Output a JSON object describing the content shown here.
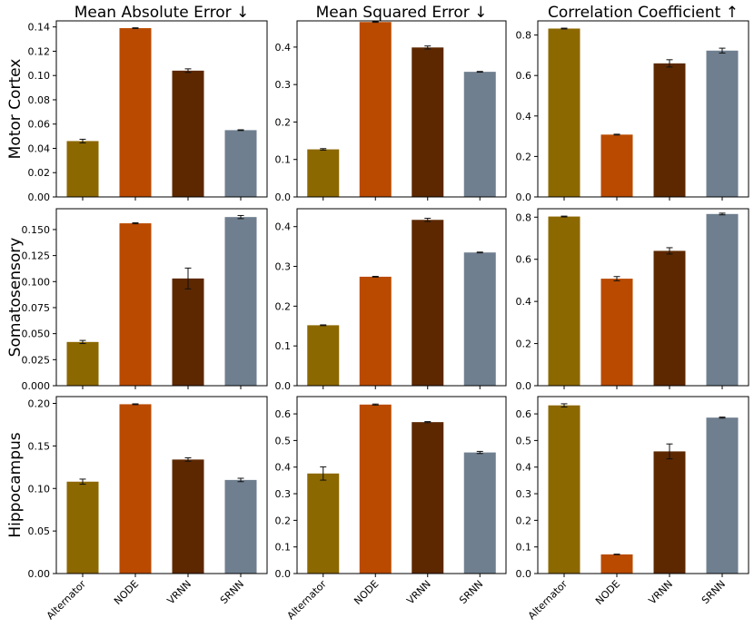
{
  "chart_data": {
    "type": "bar",
    "categories": [
      "Alternator",
      "NODE",
      "VRNN",
      "SRNN"
    ],
    "colors": [
      "#8c6800",
      "#ba4a00",
      "#5d2800",
      "#6f7f8f"
    ],
    "columns": [
      "Mean Absolute Error ↓",
      "Mean Squared Error ↓",
      "Correlation Coefficient ↑"
    ],
    "rows": [
      "Motor Cortex",
      "Somatosensory",
      "Hippocampus"
    ],
    "panels": [
      {
        "row": 0,
        "col": 0,
        "ylim": [
          0,
          0.145
        ],
        "yticks": [
          0.0,
          0.02,
          0.04,
          0.06,
          0.08,
          0.1,
          0.12,
          0.14
        ],
        "yticklabels": [
          "0.00",
          "0.02",
          "0.04",
          "0.06",
          "0.08",
          "0.10",
          "0.12",
          "0.14"
        ],
        "values": [
          0.046,
          0.139,
          0.104,
          0.055
        ],
        "errors": [
          0.0015,
          0.0003,
          0.0015,
          0.0003
        ]
      },
      {
        "row": 0,
        "col": 1,
        "ylim": [
          0,
          0.47
        ],
        "yticks": [
          0.0,
          0.1,
          0.2,
          0.3,
          0.4
        ],
        "yticklabels": [
          "0.0",
          "0.1",
          "0.2",
          "0.3",
          "0.4"
        ],
        "values": [
          0.127,
          0.467,
          0.399,
          0.334
        ],
        "errors": [
          0.002,
          0.001,
          0.004,
          0.001
        ]
      },
      {
        "row": 0,
        "col": 2,
        "ylim": [
          0,
          0.87
        ],
        "yticks": [
          0.0,
          0.2,
          0.4,
          0.6,
          0.8
        ],
        "yticklabels": [
          "0.0",
          "0.2",
          "0.4",
          "0.6",
          "0.8"
        ],
        "values": [
          0.832,
          0.308,
          0.66,
          0.723
        ],
        "errors": [
          0.002,
          0.002,
          0.018,
          0.012
        ]
      },
      {
        "row": 1,
        "col": 0,
        "ylim": [
          0,
          0.17
        ],
        "yticks": [
          0.0,
          0.025,
          0.05,
          0.075,
          0.1,
          0.125,
          0.15
        ],
        "yticklabels": [
          "0.000",
          "0.025",
          "0.050",
          "0.075",
          "0.100",
          "0.125",
          "0.150"
        ],
        "values": [
          0.042,
          0.156,
          0.103,
          0.162
        ],
        "errors": [
          0.0015,
          0.0005,
          0.01,
          0.0015
        ]
      },
      {
        "row": 1,
        "col": 1,
        "ylim": [
          0,
          0.445
        ],
        "yticks": [
          0.0,
          0.1,
          0.2,
          0.3,
          0.4
        ],
        "yticklabels": [
          "0.0",
          "0.1",
          "0.2",
          "0.3",
          "0.4"
        ],
        "values": [
          0.152,
          0.274,
          0.417,
          0.335
        ],
        "errors": [
          0.001,
          0.001,
          0.004,
          0.001
        ]
      },
      {
        "row": 1,
        "col": 2,
        "ylim": [
          0,
          0.84
        ],
        "yticks": [
          0.0,
          0.2,
          0.4,
          0.6,
          0.8
        ],
        "yticklabels": [
          "0.0",
          "0.2",
          "0.4",
          "0.6",
          "0.8"
        ],
        "values": [
          0.803,
          0.508,
          0.64,
          0.815
        ],
        "errors": [
          0.002,
          0.01,
          0.015,
          0.004
        ]
      },
      {
        "row": 2,
        "col": 0,
        "ylim": [
          0,
          0.208
        ],
        "yticks": [
          0.0,
          0.05,
          0.1,
          0.15,
          0.2
        ],
        "yticklabels": [
          "0.00",
          "0.05",
          "0.10",
          "0.15",
          "0.20"
        ],
        "values": [
          0.108,
          0.199,
          0.134,
          0.11
        ],
        "errors": [
          0.003,
          0.0005,
          0.002,
          0.002
        ]
      },
      {
        "row": 2,
        "col": 1,
        "ylim": [
          0,
          0.665
        ],
        "yticks": [
          0.0,
          0.1,
          0.2,
          0.3,
          0.4,
          0.5,
          0.6
        ],
        "yticklabels": [
          "0.0",
          "0.1",
          "0.2",
          "0.3",
          "0.4",
          "0.5",
          "0.6"
        ],
        "values": [
          0.376,
          0.635,
          0.569,
          0.455
        ],
        "errors": [
          0.025,
          0.002,
          0.002,
          0.004
        ]
      },
      {
        "row": 2,
        "col": 2,
        "ylim": [
          0,
          0.665
        ],
        "yticks": [
          0.0,
          0.1,
          0.2,
          0.3,
          0.4,
          0.5,
          0.6
        ],
        "yticklabels": [
          "0.0",
          "0.1",
          "0.2",
          "0.3",
          "0.4",
          "0.5",
          "0.6"
        ],
        "values": [
          0.632,
          0.072,
          0.459,
          0.586
        ],
        "errors": [
          0.006,
          0.001,
          0.028,
          0.002
        ]
      }
    ]
  }
}
